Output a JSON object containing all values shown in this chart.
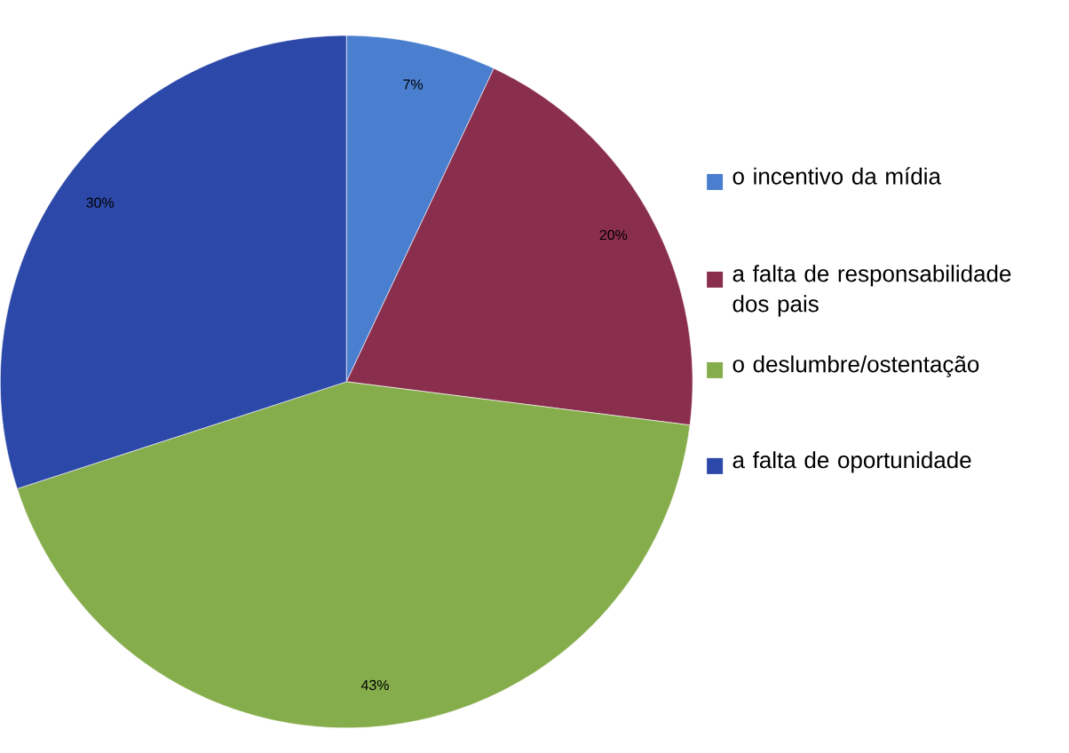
{
  "chart_data": {
    "type": "pie",
    "categories": [
      "o incentivo da mídia",
      "a falta de responsabilidade dos pais",
      "o deslumbre/ostentação",
      "a falta de oportunidade"
    ],
    "values": [
      7,
      20,
      43,
      30
    ],
    "value_labels": [
      "7%",
      "20%",
      "43%",
      "30%"
    ],
    "colors": [
      "#4a7fd0",
      "#8a2e4e",
      "#86ad4c",
      "#2c48a8"
    ],
    "legend": "right"
  }
}
